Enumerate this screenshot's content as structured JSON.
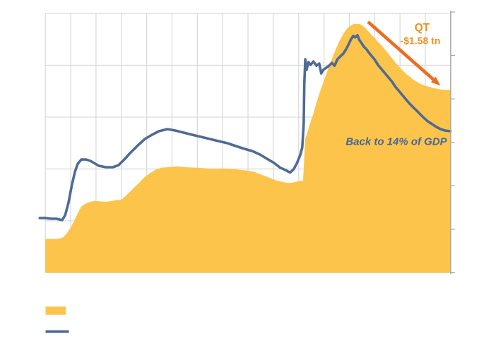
{
  "page": {
    "background": "#FFFFFF"
  },
  "colors": {
    "area": "#FDC44B",
    "line": "#4E6B94",
    "grid": "#D9D9D9",
    "axis": "#A6A6A6",
    "arrow": "#EC6D1F",
    "qt_text": "#F0941E",
    "note_text": "#44679C"
  },
  "legend": {
    "position": "bottom-left",
    "items": [
      {
        "swatch": "area",
        "color": "#FDC44B",
        "label": ""
      },
      {
        "swatch": "line",
        "color": "#4E6B94",
        "label": ""
      }
    ]
  },
  "chart_data": {
    "type": "area+line combo",
    "title": "",
    "grid": true,
    "legend_position": "bottom-left",
    "axes": {
      "x": {
        "min": 2010,
        "max": 2026,
        "grid_interval": 1,
        "tick_labels_visible": false
      },
      "left": {
        "min": 0,
        "max": 6,
        "grid_interval": 1.2,
        "unit": "$ tn",
        "labels_visible": false
      },
      "right": {
        "min": 0,
        "max": 24,
        "tick_interval": 4,
        "unit": "% of GDP",
        "labels_visible": false
      }
    },
    "annotations": {
      "qt": {
        "label": "QT",
        "amount": "-$1.58 tn"
      },
      "gdp_note": {
        "text": "Back to 14% of GDP"
      }
    },
    "series": [
      {
        "name": "gold_area",
        "type": "area",
        "axis": "left",
        "points": [
          [
            2010.0,
            0.78
          ],
          [
            2010.3,
            0.78
          ],
          [
            2010.58,
            0.79
          ],
          [
            2010.72,
            0.83
          ],
          [
            2010.86,
            0.92
          ],
          [
            2011.0,
            1.05
          ],
          [
            2011.14,
            1.2
          ],
          [
            2011.28,
            1.38
          ],
          [
            2011.42,
            1.53
          ],
          [
            2011.56,
            1.59
          ],
          [
            2011.75,
            1.64
          ],
          [
            2011.97,
            1.66
          ],
          [
            2012.39,
            1.64
          ],
          [
            2012.81,
            1.68
          ],
          [
            2013.01,
            1.69
          ],
          [
            2013.23,
            1.81
          ],
          [
            2013.45,
            1.94
          ],
          [
            2013.68,
            2.07
          ],
          [
            2013.9,
            2.2
          ],
          [
            2014.12,
            2.3
          ],
          [
            2014.34,
            2.38
          ],
          [
            2014.57,
            2.43
          ],
          [
            2014.79,
            2.44
          ],
          [
            2015.18,
            2.46
          ],
          [
            2015.6,
            2.44
          ],
          [
            2016.02,
            2.43
          ],
          [
            2016.44,
            2.41
          ],
          [
            2016.85,
            2.41
          ],
          [
            2017.27,
            2.41
          ],
          [
            2017.69,
            2.38
          ],
          [
            2018.03,
            2.36
          ],
          [
            2018.25,
            2.33
          ],
          [
            2018.47,
            2.28
          ],
          [
            2018.7,
            2.23
          ],
          [
            2018.92,
            2.18
          ],
          [
            2019.14,
            2.13
          ],
          [
            2019.37,
            2.1
          ],
          [
            2019.53,
            2.08
          ],
          [
            2019.7,
            2.08
          ],
          [
            2019.87,
            2.1
          ],
          [
            2020.03,
            2.12
          ],
          [
            2020.17,
            2.13
          ],
          [
            2020.2,
            2.4
          ],
          [
            2020.23,
            2.8
          ],
          [
            2020.26,
            3.1
          ],
          [
            2020.37,
            3.29
          ],
          [
            2020.48,
            3.51
          ],
          [
            2020.59,
            3.7
          ],
          [
            2020.7,
            3.93
          ],
          [
            2020.81,
            4.13
          ],
          [
            2020.92,
            4.32
          ],
          [
            2021.04,
            4.52
          ],
          [
            2021.15,
            4.7
          ],
          [
            2021.26,
            4.86
          ],
          [
            2021.37,
            5.03
          ],
          [
            2021.48,
            5.19
          ],
          [
            2021.59,
            5.34
          ],
          [
            2021.71,
            5.47
          ],
          [
            2021.82,
            5.58
          ],
          [
            2021.93,
            5.66
          ],
          [
            2022.04,
            5.71
          ],
          [
            2022.15,
            5.75
          ],
          [
            2022.29,
            5.76
          ],
          [
            2022.43,
            5.75
          ],
          [
            2022.54,
            5.71
          ],
          [
            2022.65,
            5.65
          ],
          [
            2022.76,
            5.58
          ],
          [
            2022.88,
            5.5
          ],
          [
            2022.99,
            5.44
          ],
          [
            2023.13,
            5.34
          ],
          [
            2023.27,
            5.26
          ],
          [
            2023.41,
            5.16
          ],
          [
            2023.55,
            5.06
          ],
          [
            2023.69,
            4.96
          ],
          [
            2023.82,
            4.86
          ],
          [
            2023.96,
            4.77
          ],
          [
            2024.1,
            4.68
          ],
          [
            2024.24,
            4.6
          ],
          [
            2024.38,
            4.54
          ],
          [
            2024.52,
            4.47
          ],
          [
            2024.66,
            4.42
          ],
          [
            2024.8,
            4.37
          ],
          [
            2024.94,
            4.34
          ],
          [
            2025.1,
            4.31
          ],
          [
            2025.27,
            4.28
          ],
          [
            2025.44,
            4.26
          ],
          [
            2025.6,
            4.24
          ],
          [
            2025.77,
            4.23
          ],
          [
            2025.99,
            4.23
          ]
        ]
      },
      {
        "name": "blue_line",
        "type": "line",
        "axis": "right",
        "points": [
          [
            2009.78,
            5.03
          ],
          [
            2010.0,
            5.03
          ],
          [
            2010.22,
            4.97
          ],
          [
            2010.44,
            4.97
          ],
          [
            2010.66,
            4.84
          ],
          [
            2010.78,
            5.29
          ],
          [
            2010.91,
            6.4
          ],
          [
            2011.05,
            8.09
          ],
          [
            2011.17,
            9.32
          ],
          [
            2011.28,
            10.03
          ],
          [
            2011.42,
            10.42
          ],
          [
            2011.61,
            10.42
          ],
          [
            2011.78,
            10.29
          ],
          [
            2011.92,
            10.1
          ],
          [
            2012.11,
            9.84
          ],
          [
            2012.39,
            9.71
          ],
          [
            2012.67,
            9.71
          ],
          [
            2012.89,
            9.9
          ],
          [
            2013.09,
            10.36
          ],
          [
            2013.37,
            11.07
          ],
          [
            2013.65,
            11.72
          ],
          [
            2013.93,
            12.31
          ],
          [
            2014.21,
            12.7
          ],
          [
            2014.48,
            13.02
          ],
          [
            2014.82,
            13.22
          ],
          [
            2015.13,
            13.09
          ],
          [
            2015.46,
            12.89
          ],
          [
            2015.79,
            12.7
          ],
          [
            2016.16,
            12.5
          ],
          [
            2016.49,
            12.31
          ],
          [
            2016.85,
            12.11
          ],
          [
            2017.19,
            11.92
          ],
          [
            2017.52,
            11.66
          ],
          [
            2017.86,
            11.4
          ],
          [
            2018.17,
            11.2
          ],
          [
            2018.47,
            10.88
          ],
          [
            2018.75,
            10.49
          ],
          [
            2019.03,
            10.1
          ],
          [
            2019.28,
            9.65
          ],
          [
            2019.48,
            9.45
          ],
          [
            2019.66,
            9.22
          ],
          [
            2019.8,
            9.52
          ],
          [
            2019.92,
            10.03
          ],
          [
            2020.06,
            10.81
          ],
          [
            2020.14,
            11.53
          ],
          [
            2020.2,
            13.74
          ],
          [
            2020.22,
            17.31
          ],
          [
            2020.26,
            19.65
          ],
          [
            2020.31,
            18.67
          ],
          [
            2020.39,
            19.39
          ],
          [
            2020.47,
            19.13
          ],
          [
            2020.58,
            19.45
          ],
          [
            2020.7,
            19.06
          ],
          [
            2020.81,
            19.26
          ],
          [
            2020.89,
            18.35
          ],
          [
            2020.97,
            18.67
          ],
          [
            2021.09,
            18.87
          ],
          [
            2021.2,
            19.06
          ],
          [
            2021.31,
            19.32
          ],
          [
            2021.42,
            19.06
          ],
          [
            2021.53,
            19.65
          ],
          [
            2021.64,
            19.91
          ],
          [
            2021.76,
            20.17
          ],
          [
            2021.87,
            20.56
          ],
          [
            2021.98,
            21.08
          ],
          [
            2022.06,
            21.47
          ],
          [
            2022.15,
            21.79
          ],
          [
            2022.23,
            21.66
          ],
          [
            2022.32,
            21.86
          ],
          [
            2022.4,
            21.4
          ],
          [
            2022.48,
            21.14
          ],
          [
            2022.57,
            20.82
          ],
          [
            2022.68,
            20.56
          ],
          [
            2022.76,
            20.3
          ],
          [
            2022.87,
            19.97
          ],
          [
            2022.99,
            19.65
          ],
          [
            2023.13,
            19.13
          ],
          [
            2023.27,
            18.74
          ],
          [
            2023.41,
            18.35
          ],
          [
            2023.55,
            17.96
          ],
          [
            2023.69,
            17.57
          ],
          [
            2023.82,
            17.11
          ],
          [
            2023.96,
            16.72
          ],
          [
            2024.1,
            16.33
          ],
          [
            2024.24,
            15.94
          ],
          [
            2024.38,
            15.56
          ],
          [
            2024.52,
            15.23
          ],
          [
            2024.66,
            14.91
          ],
          [
            2024.8,
            14.58
          ],
          [
            2024.94,
            14.26
          ],
          [
            2025.1,
            13.93
          ],
          [
            2025.27,
            13.67
          ],
          [
            2025.44,
            13.41
          ],
          [
            2025.6,
            13.22
          ],
          [
            2025.77,
            13.09
          ],
          [
            2025.99,
            13.02
          ]
        ]
      }
    ]
  }
}
